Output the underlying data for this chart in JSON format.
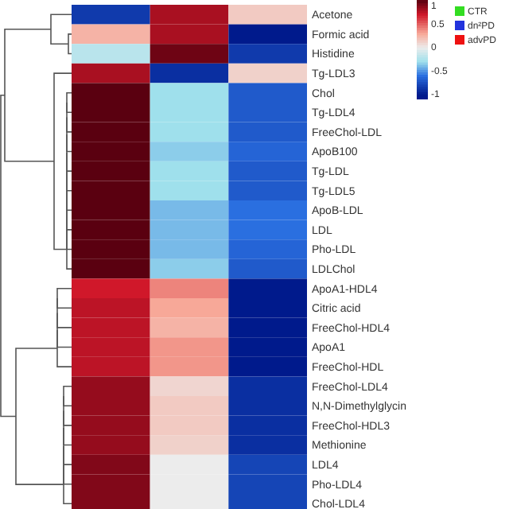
{
  "chart_data": {
    "type": "heatmap",
    "categories": [
      null,
      null,
      null
    ],
    "annotations": [
      "CTR",
      "dn²PD",
      "advPD"
    ],
    "y_categories": [
      "Acetone",
      "Formic acid",
      "Histidine",
      "Tg-LDL3",
      "Chol",
      "Tg-LDL4",
      "FreeChol-LDL",
      "ApoB100",
      "Tg-LDL",
      "Tg-LDL5",
      "ApoB-LDL",
      "LDL",
      "Pho-LDL",
      "LDLChol",
      "ApoA1-HDL4",
      "Citric acid",
      "FreeChol-HDL4",
      "ApoA1",
      "FreeChol-HDL",
      "FreeChol-LDL4",
      "N,N-Dimethylglycin",
      "FreeChol-HDL3",
      "Methionine",
      "LDL4",
      "Pho-LDL4",
      "Chol-LDL4"
    ],
    "cells": [
      [
        -0.85,
        0.8,
        0.15
      ],
      [
        0.25,
        0.8,
        -1.0
      ],
      [
        -0.2,
        0.95,
        -0.85
      ],
      [
        0.8,
        -0.9,
        0.12
      ],
      [
        1.0,
        -0.3,
        -0.7
      ],
      [
        1.0,
        -0.3,
        -0.7
      ],
      [
        1.0,
        -0.3,
        -0.7
      ],
      [
        1.0,
        -0.35,
        -0.65
      ],
      [
        1.0,
        -0.3,
        -0.7
      ],
      [
        1.0,
        -0.3,
        -0.7
      ],
      [
        1.0,
        -0.4,
        -0.6
      ],
      [
        1.0,
        -0.4,
        -0.6
      ],
      [
        1.0,
        -0.4,
        -0.65
      ],
      [
        1.0,
        -0.35,
        -0.7
      ],
      [
        0.7,
        0.4,
        -1.0
      ],
      [
        0.75,
        0.3,
        -1.0
      ],
      [
        0.75,
        0.25,
        -1.0
      ],
      [
        0.75,
        0.35,
        -1.05
      ],
      [
        0.75,
        0.35,
        -1.05
      ],
      [
        0.85,
        0.1,
        -0.9
      ],
      [
        0.85,
        0.15,
        -0.9
      ],
      [
        0.85,
        0.15,
        -0.9
      ],
      [
        0.85,
        0.12,
        -0.9
      ],
      [
        0.9,
        0.0,
        -0.8
      ],
      [
        0.9,
        0.0,
        -0.8
      ],
      [
        0.9,
        0.0,
        -0.8
      ]
    ],
    "clim": [
      -1.1,
      1
    ],
    "cticks": [
      -1,
      -0.5,
      0,
      0.5,
      1
    ]
  }
}
